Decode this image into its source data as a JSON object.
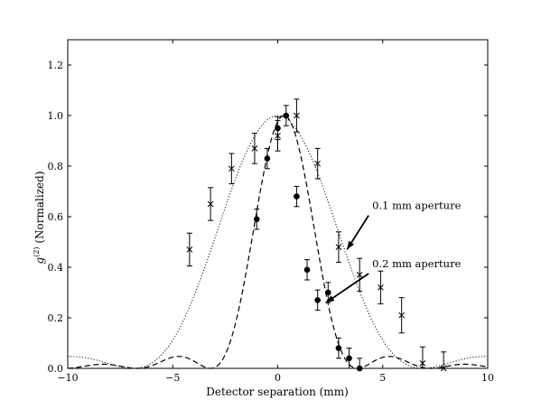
{
  "chart_data": {
    "type": "scatter",
    "xlabel": "Detector separation (mm)",
    "ylabel": "g(2) (Normalized)",
    "ylabel_parts": {
      "base": "g",
      "sup": "(2)",
      "rest": " (Normalized)"
    },
    "xlim": [
      -10,
      10
    ],
    "ylim": [
      0,
      1.3
    ],
    "xticks": [
      -10,
      -5,
      0,
      5,
      10
    ],
    "yticks": [
      0.0,
      0.2,
      0.4,
      0.6,
      0.8,
      1.0,
      1.2
    ],
    "xtick_labels": [
      "−10",
      "−5",
      "0",
      "5",
      "10"
    ],
    "ytick_labels": [
      "0.0",
      "0.2",
      "0.4",
      "0.6",
      "0.8",
      "1.0",
      "1.2"
    ],
    "grid": false,
    "series": [
      {
        "marker": "x",
        "points": [
          {
            "x": -4.2,
            "y": 0.47,
            "err": 0.065
          },
          {
            "x": -3.2,
            "y": 0.65,
            "err": 0.065
          },
          {
            "x": -2.2,
            "y": 0.79,
            "err": 0.06
          },
          {
            "x": -1.1,
            "y": 0.87,
            "err": 0.06
          },
          {
            "x": 0.0,
            "y": 0.92,
            "err": 0.06
          },
          {
            "x": 0.9,
            "y": 1.0,
            "err": 0.065
          },
          {
            "x": 1.9,
            "y": 0.81,
            "err": 0.06
          },
          {
            "x": 2.9,
            "y": 0.48,
            "err": 0.06
          },
          {
            "x": 3.9,
            "y": 0.37,
            "err": 0.065
          },
          {
            "x": 4.9,
            "y": 0.32,
            "err": 0.065
          },
          {
            "x": 5.9,
            "y": 0.21,
            "err": 0.07
          },
          {
            "x": 6.9,
            "y": 0.02,
            "err": 0.065
          },
          {
            "x": 7.9,
            "y": 0.0,
            "err": 0.065
          }
        ]
      },
      {
        "marker": "o",
        "points": [
          {
            "x": -1.0,
            "y": 0.59,
            "err": 0.04
          },
          {
            "x": -0.5,
            "y": 0.83,
            "err": 0.04
          },
          {
            "x": 0.0,
            "y": 0.95,
            "err": 0.045
          },
          {
            "x": 0.4,
            "y": 1.0,
            "err": 0.04
          },
          {
            "x": 0.9,
            "y": 0.68,
            "err": 0.04
          },
          {
            "x": 1.4,
            "y": 0.39,
            "err": 0.04
          },
          {
            "x": 1.9,
            "y": 0.27,
            "err": 0.04
          },
          {
            "x": 2.4,
            "y": 0.3,
            "err": 0.04
          },
          {
            "x": 2.9,
            "y": 0.08,
            "err": 0.04
          },
          {
            "x": 3.4,
            "y": 0.04,
            "err": 0.04
          },
          {
            "x": 3.9,
            "y": 0.0,
            "err": 0.04
          }
        ]
      }
    ],
    "curves": [
      {
        "style": "dotted",
        "peak_x": 0.0,
        "first_zero_x": 6.9
      },
      {
        "style": "dashed",
        "peak_x": 0.3,
        "first_zero_x": 3.5
      }
    ],
    "annotations": [
      {
        "text": "0.1 mm aperture",
        "text_x": 4.5,
        "text_y": 0.63,
        "arrow_to_x": 3.3,
        "arrow_to_y": 0.47
      },
      {
        "text": "0.2 mm aperture",
        "text_x": 4.5,
        "text_y": 0.4,
        "arrow_to_x": 2.3,
        "arrow_to_y": 0.26
      }
    ]
  }
}
